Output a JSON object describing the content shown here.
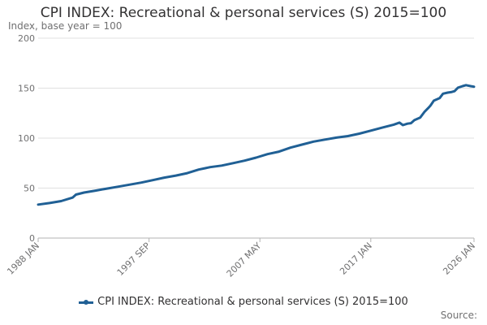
{
  "chart_data": {
    "type": "line",
    "title": "CPI INDEX: Recreational & personal services (S) 2015=100",
    "subtitle": "Index, base year = 100",
    "xlabel": "",
    "ylabel": "Index, base year = 100",
    "ylim": [
      0,
      200
    ],
    "yticks": [
      0,
      50,
      100,
      150,
      200
    ],
    "xlim": [
      1988.0,
      2026.0
    ],
    "xticks": [
      {
        "label": "1988 JAN",
        "value": 1988.0
      },
      {
        "label": "1997 SEP",
        "value": 1997.667
      },
      {
        "label": "2007 MAY",
        "value": 2007.333
      },
      {
        "label": "2017 JAN",
        "value": 2017.0
      },
      {
        "label": "2026 JAN",
        "value": 2026.0
      }
    ],
    "grid": true,
    "legend_position": "bottom",
    "series": [
      {
        "name": "CPI INDEX: Recreational & personal services (S) 2015=100",
        "color": "#206095",
        "x": [
          1988.0,
          1989.0,
          1990.0,
          1991.0,
          1991.3,
          1992.0,
          1993.0,
          1994.0,
          1995.0,
          1996.0,
          1997.0,
          1998.0,
          1999.0,
          2000.0,
          2001.0,
          2002.0,
          2003.0,
          2004.0,
          2005.0,
          2006.0,
          2007.0,
          2008.0,
          2009.0,
          2010.0,
          2011.0,
          2012.0,
          2013.0,
          2014.0,
          2015.0,
          2016.0,
          2017.0,
          2018.0,
          2019.0,
          2019.5,
          2019.8,
          2020.2,
          2020.5,
          2020.8,
          2021.3,
          2021.7,
          2022.0,
          2022.2,
          2022.5,
          2022.8,
          2023.0,
          2023.3,
          2023.7,
          2024.0,
          2024.3,
          2024.6,
          2025.0,
          2025.3,
          2025.7,
          2026.0
        ],
        "values": [
          33.5,
          35.0,
          37.0,
          40.5,
          43.5,
          45.5,
          47.5,
          49.5,
          51.5,
          53.5,
          55.5,
          58.0,
          60.5,
          62.5,
          65.0,
          68.5,
          71.0,
          72.5,
          75.0,
          77.5,
          80.5,
          84.0,
          86.5,
          90.5,
          93.5,
          96.5,
          98.5,
          100.5,
          102.0,
          104.5,
          107.5,
          110.5,
          113.5,
          115.5,
          113.0,
          114.5,
          115.0,
          118.0,
          120.5,
          126.5,
          130.0,
          132.5,
          137.5,
          139.0,
          140.0,
          144.5,
          145.5,
          146.0,
          147.0,
          150.5,
          152.0,
          153.0,
          152.0,
          151.5
        ]
      }
    ]
  },
  "source_label": "Source:"
}
